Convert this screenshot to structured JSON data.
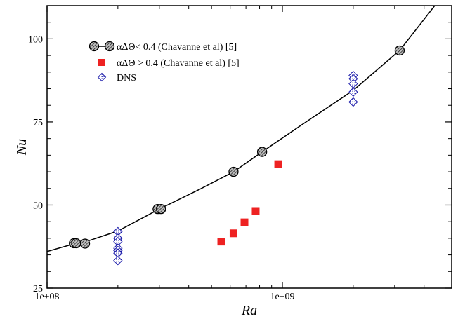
{
  "chart_data": {
    "type": "scatter",
    "title": "",
    "xlabel": "Ra",
    "ylabel": "Nu",
    "xscale": "log",
    "xlim": [
      100000000,
      4500000000
    ],
    "ylim": [
      25,
      110
    ],
    "x_ticks": [
      {
        "value": 100000000,
        "label": "1e+08"
      },
      {
        "value": 1000000000,
        "label": "1e+09"
      }
    ],
    "y_ticks": [
      {
        "value": 25,
        "label": "25"
      },
      {
        "value": 50,
        "label": "50"
      },
      {
        "value": 75,
        "label": "75"
      },
      {
        "value": 100,
        "label": "100"
      }
    ],
    "legend_position": "top-left",
    "grid": false,
    "series": [
      {
        "name": "αΔΘ< 0.4 (Chavanne  et al) [5]",
        "marker": "hatched-circle",
        "color": "#000000",
        "fill": "#8c8c8c",
        "line": true,
        "x": [
          130000000,
          133000000,
          145000000,
          295000000,
          305000000,
          620000000,
          820000000,
          3150000000
        ],
        "y": [
          38.5,
          38.5,
          38.4,
          48.8,
          48.8,
          60.0,
          66.0,
          96.5
        ]
      },
      {
        "name": "αΔΘ > 0.4 (Chavanne  et al) [5]",
        "marker": "square",
        "color": "#ee2222",
        "line": false,
        "x": [
          550000000,
          620000000,
          690000000,
          770000000,
          960000000
        ],
        "y": [
          39.0,
          41.5,
          44.8,
          48.2,
          62.3
        ]
      },
      {
        "name": "DNS",
        "marker": "dotted-diamond",
        "color": "#1a1aaa",
        "fill": "#ffffff",
        "line": false,
        "x": [
          200000000,
          200000000,
          200000000,
          200000000,
          200000000,
          200000000,
          200000000,
          2000000000,
          2000000000,
          2000000000,
          2000000000,
          2000000000
        ],
        "y": [
          42.0,
          40.0,
          39.0,
          37.0,
          36.3,
          35.5,
          33.3,
          89.0,
          88.0,
          86.5,
          84.0,
          81.0
        ]
      }
    ],
    "fit_curve": {
      "x": [
        90000000,
        100000000,
        130000000,
        145000000,
        200000000,
        300000000,
        450000000,
        620000000,
        820000000,
        1200000000,
        2000000000,
        3150000000,
        4500000000
      ],
      "y": [
        35.2,
        36.0,
        38.3,
        38.9,
        42.2,
        48.8,
        54.9,
        60.0,
        66.0,
        74.0,
        84.5,
        96.5,
        110.5
      ]
    }
  }
}
